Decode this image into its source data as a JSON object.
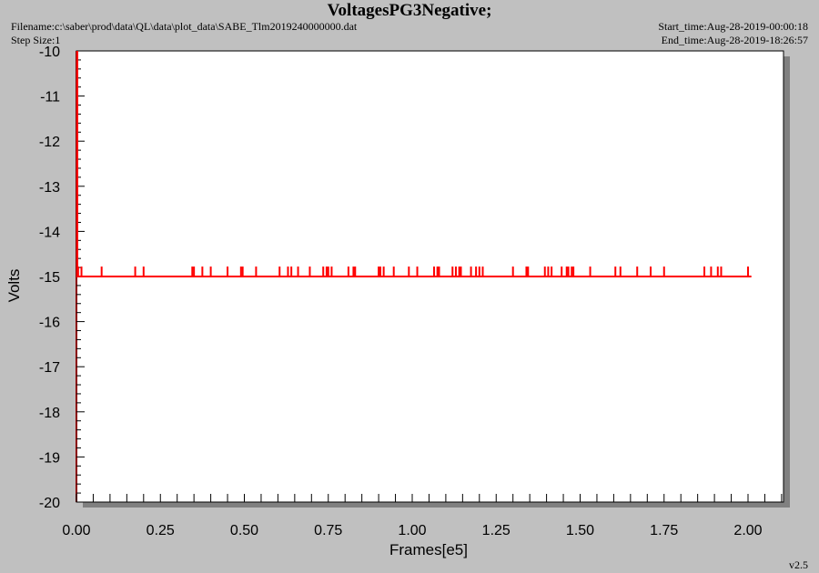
{
  "header": {
    "title": "VoltagesPG3Negative;",
    "filename": "Filename:c:\\saber\\prod\\data\\QL\\data\\plot_data\\SABE_Tlm2019240000000.dat",
    "step_size": "Step Size:1",
    "start_time": "Start_time:Aug-28-2019-00:00:18",
    "end_time": "End_time:Aug-28-2019-18:26:57"
  },
  "footer": {
    "version": "v2.5"
  },
  "colors": {
    "series": "#ff0000",
    "axis_left": "#8b0000",
    "plot_bg": "#ffffff",
    "page_bg": "#c0c0c0",
    "shadow": "#808080"
  },
  "chart_data": {
    "type": "line",
    "title": "VoltagesPG3Negative;",
    "xlabel": "Frames[e5]",
    "ylabel": "Volts",
    "xlim": [
      0.0,
      2.1
    ],
    "ylim": [
      -20,
      -10
    ],
    "xticks": [
      "0.00",
      "0.25",
      "0.50",
      "0.75",
      "1.00",
      "1.25",
      "1.50",
      "1.75",
      "2.00"
    ],
    "yticks": [
      "-10",
      "-11",
      "-12",
      "-13",
      "-14",
      "-15",
      "-16",
      "-17",
      "-18",
      "-19",
      "-20"
    ],
    "grid": false,
    "series": [
      {
        "baseline": -15.0,
        "spike_value": -14.8,
        "x_range": [
          0.0,
          2.01
        ],
        "spike_x": [
          0.005,
          0.015,
          0.075,
          0.175,
          0.2,
          0.345,
          0.35,
          0.375,
          0.4,
          0.45,
          0.49,
          0.495,
          0.535,
          0.605,
          0.63,
          0.64,
          0.66,
          0.695,
          0.735,
          0.745,
          0.75,
          0.76,
          0.81,
          0.825,
          0.83,
          0.9,
          0.905,
          0.915,
          0.945,
          0.99,
          1.015,
          1.065,
          1.075,
          1.08,
          1.12,
          1.13,
          1.14,
          1.145,
          1.175,
          1.19,
          1.2,
          1.21,
          1.3,
          1.34,
          1.345,
          1.395,
          1.405,
          1.415,
          1.445,
          1.46,
          1.465,
          1.475,
          1.48,
          1.53,
          1.605,
          1.62,
          1.67,
          1.71,
          1.75,
          1.87,
          1.89,
          1.91,
          1.92,
          2.0
        ],
        "initial_drop_from": -10.0
      }
    ]
  }
}
